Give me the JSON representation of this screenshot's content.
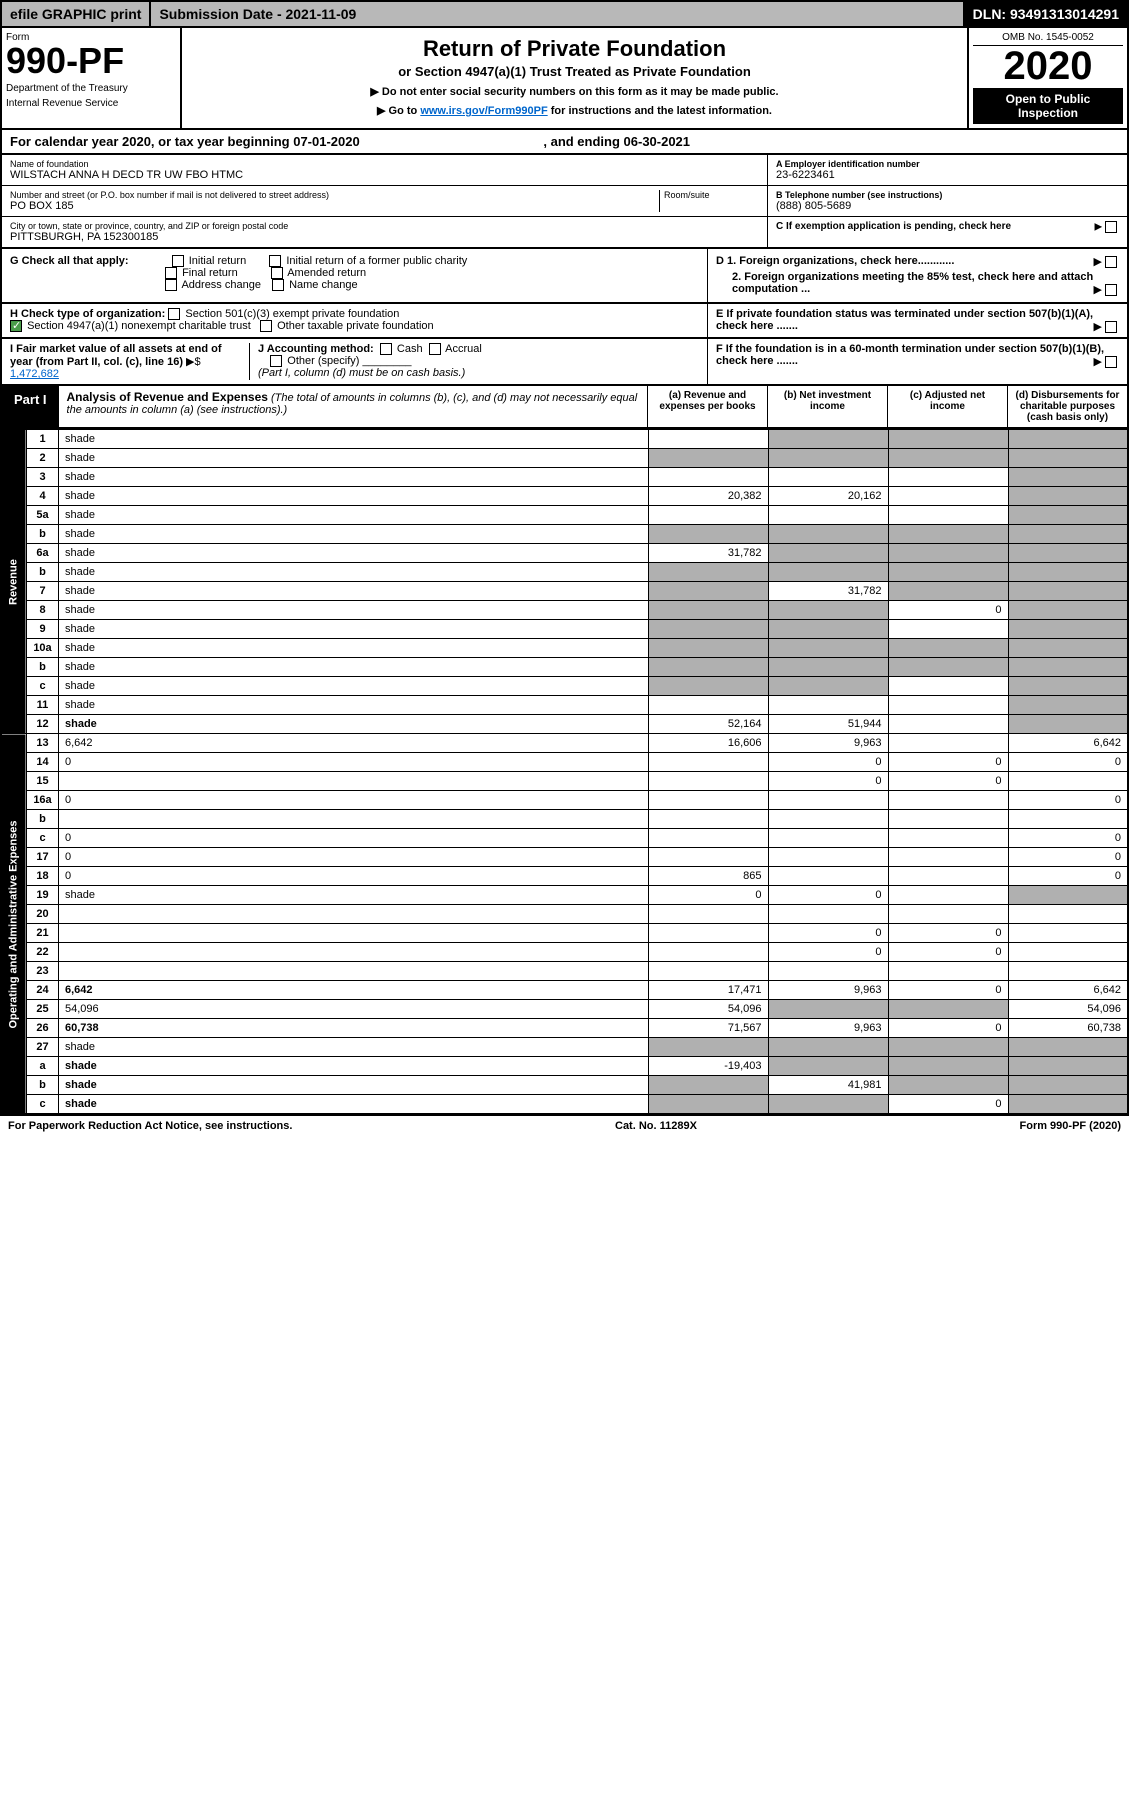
{
  "topbar": {
    "efile": "efile GRAPHIC print",
    "subdate": "Submission Date - 2021-11-09",
    "dln": "DLN: 93491313014291"
  },
  "header": {
    "form_label": "Form",
    "form_number": "990-PF",
    "dept1": "Department of the Treasury",
    "dept2": "Internal Revenue Service",
    "title": "Return of Private Foundation",
    "subtitle": "or Section 4947(a)(1) Trust Treated as Private Foundation",
    "instr1": "▶ Do not enter social security numbers on this form as it may be made public.",
    "instr2_pre": "▶ Go to ",
    "instr2_link": "www.irs.gov/Form990PF",
    "instr2_post": " for instructions and the latest information.",
    "omb": "OMB No. 1545-0052",
    "year": "2020",
    "open": "Open to Public Inspection"
  },
  "calyear": {
    "text": "For calendar year 2020, or tax year beginning 07-01-2020",
    "mid": ", and ending 06-30-2021"
  },
  "info": {
    "name_label": "Name of foundation",
    "name": "WILSTACH ANNA H DECD TR UW FBO HTMC",
    "addr_label": "Number and street (or P.O. box number if mail is not delivered to street address)",
    "room_label": "Room/suite",
    "addr": "PO BOX 185",
    "city_label": "City or town, state or province, country, and ZIP or foreign postal code",
    "city": "PITTSBURGH, PA  152300185",
    "ein_label": "A Employer identification number",
    "ein": "23-6223461",
    "tel_label": "B Telephone number (see instructions)",
    "tel": "(888) 805-5689",
    "c_label": "C If exemption application is pending, check here"
  },
  "g": {
    "label": "G Check all that apply:",
    "o1": "Initial return",
    "o2": "Initial return of a former public charity",
    "o3": "Final return",
    "o4": "Amended return",
    "o5": "Address change",
    "o6": "Name change"
  },
  "d": {
    "d1": "D 1. Foreign organizations, check here............",
    "d2": "2. Foreign organizations meeting the 85% test, check here and attach computation ..."
  },
  "h": {
    "label": "H Check type of organization:",
    "o1": "Section 501(c)(3) exempt private foundation",
    "o2": "Section 4947(a)(1) nonexempt charitable trust",
    "o3": "Other taxable private foundation"
  },
  "e": "E  If private foundation status was terminated under section 507(b)(1)(A), check here .......",
  "i": {
    "label": "I Fair market value of all assets at end of year (from Part II, col. (c), line 16)",
    "val": "1,472,682"
  },
  "j": {
    "label": "J Accounting method:",
    "o1": "Cash",
    "o2": "Accrual",
    "o3": "Other (specify)",
    "note": "(Part I, column (d) must be on cash basis.)"
  },
  "f": "F  If the foundation is in a 60-month termination under section 507(b)(1)(B), check here .......",
  "part1": {
    "label": "Part I",
    "title": "Analysis of Revenue and Expenses",
    "desc": " (The total of amounts in columns (b), (c), and (d) may not necessarily equal the amounts in column (a) (see instructions).)",
    "ca": "(a)   Revenue and expenses per books",
    "cb": "(b)   Net investment income",
    "cc": "(c)   Adjusted net income",
    "cd": "(d)  Disbursements for charitable purposes (cash basis only)"
  },
  "sidelabels": {
    "rev": "Revenue",
    "exp": "Operating and Administrative Expenses"
  },
  "rows": [
    {
      "n": "1",
      "d": "shade",
      "a": "",
      "b": "shade",
      "c": "shade"
    },
    {
      "n": "2",
      "d": "shade",
      "a": "shade",
      "b": "shade",
      "c": "shade",
      "bold": false
    },
    {
      "n": "3",
      "d": "shade",
      "a": "",
      "b": "",
      "c": ""
    },
    {
      "n": "4",
      "d": "shade",
      "a": "20,382",
      "b": "20,162",
      "c": ""
    },
    {
      "n": "5a",
      "d": "shade",
      "a": "",
      "b": "",
      "c": ""
    },
    {
      "n": "b",
      "d": "shade",
      "a": "shade",
      "b": "shade",
      "c": "shade"
    },
    {
      "n": "6a",
      "d": "shade",
      "a": "31,782",
      "b": "shade",
      "c": "shade"
    },
    {
      "n": "b",
      "d": "shade",
      "a": "shade",
      "b": "shade",
      "c": "shade"
    },
    {
      "n": "7",
      "d": "shade",
      "a": "shade",
      "b": "31,782",
      "c": "shade"
    },
    {
      "n": "8",
      "d": "shade",
      "a": "shade",
      "b": "shade",
      "c": "0"
    },
    {
      "n": "9",
      "d": "shade",
      "a": "shade",
      "b": "shade",
      "c": ""
    },
    {
      "n": "10a",
      "d": "shade",
      "a": "shade",
      "b": "shade",
      "c": "shade"
    },
    {
      "n": "b",
      "d": "shade",
      "a": "shade",
      "b": "shade",
      "c": "shade"
    },
    {
      "n": "c",
      "d": "shade",
      "a": "shade",
      "b": "shade",
      "c": ""
    },
    {
      "n": "11",
      "d": "shade",
      "a": "",
      "b": "",
      "c": ""
    },
    {
      "n": "12",
      "d": "shade",
      "a": "52,164",
      "b": "51,944",
      "c": "",
      "bold": true
    },
    {
      "n": "13",
      "d": "6,642",
      "a": "16,606",
      "b": "9,963",
      "c": ""
    },
    {
      "n": "14",
      "d": "0",
      "a": "",
      "b": "0",
      "c": "0"
    },
    {
      "n": "15",
      "d": "",
      "a": "",
      "b": "0",
      "c": "0"
    },
    {
      "n": "16a",
      "d": "0",
      "a": "",
      "b": "",
      "c": ""
    },
    {
      "n": "b",
      "d": "",
      "a": "",
      "b": "",
      "c": ""
    },
    {
      "n": "c",
      "d": "0",
      "a": "",
      "b": "",
      "c": ""
    },
    {
      "n": "17",
      "d": "0",
      "a": "",
      "b": "",
      "c": ""
    },
    {
      "n": "18",
      "d": "0",
      "a": "865",
      "b": "",
      "c": ""
    },
    {
      "n": "19",
      "d": "shade",
      "a": "0",
      "b": "0",
      "c": ""
    },
    {
      "n": "20",
      "d": "",
      "a": "",
      "b": "",
      "c": ""
    },
    {
      "n": "21",
      "d": "",
      "a": "",
      "b": "0",
      "c": "0"
    },
    {
      "n": "22",
      "d": "",
      "a": "",
      "b": "0",
      "c": "0"
    },
    {
      "n": "23",
      "d": "",
      "a": "",
      "b": "",
      "c": ""
    },
    {
      "n": "24",
      "d": "6,642",
      "a": "17,471",
      "b": "9,963",
      "c": "0",
      "bold": true
    },
    {
      "n": "25",
      "d": "54,096",
      "a": "54,096",
      "b": "shade",
      "c": "shade"
    },
    {
      "n": "26",
      "d": "60,738",
      "a": "71,567",
      "b": "9,963",
      "c": "0",
      "bold": true
    },
    {
      "n": "27",
      "d": "shade",
      "a": "shade",
      "b": "shade",
      "c": "shade"
    },
    {
      "n": "a",
      "d": "shade",
      "a": "-19,403",
      "b": "shade",
      "c": "shade",
      "bold": true
    },
    {
      "n": "b",
      "d": "shade",
      "a": "shade",
      "b": "41,981",
      "c": "shade",
      "bold": true
    },
    {
      "n": "c",
      "d": "shade",
      "a": "shade",
      "b": "shade",
      "c": "0",
      "bold": true
    }
  ],
  "footer": {
    "left": "For Paperwork Reduction Act Notice, see instructions.",
    "mid": "Cat. No. 11289X",
    "right": "Form 990-PF (2020)"
  }
}
